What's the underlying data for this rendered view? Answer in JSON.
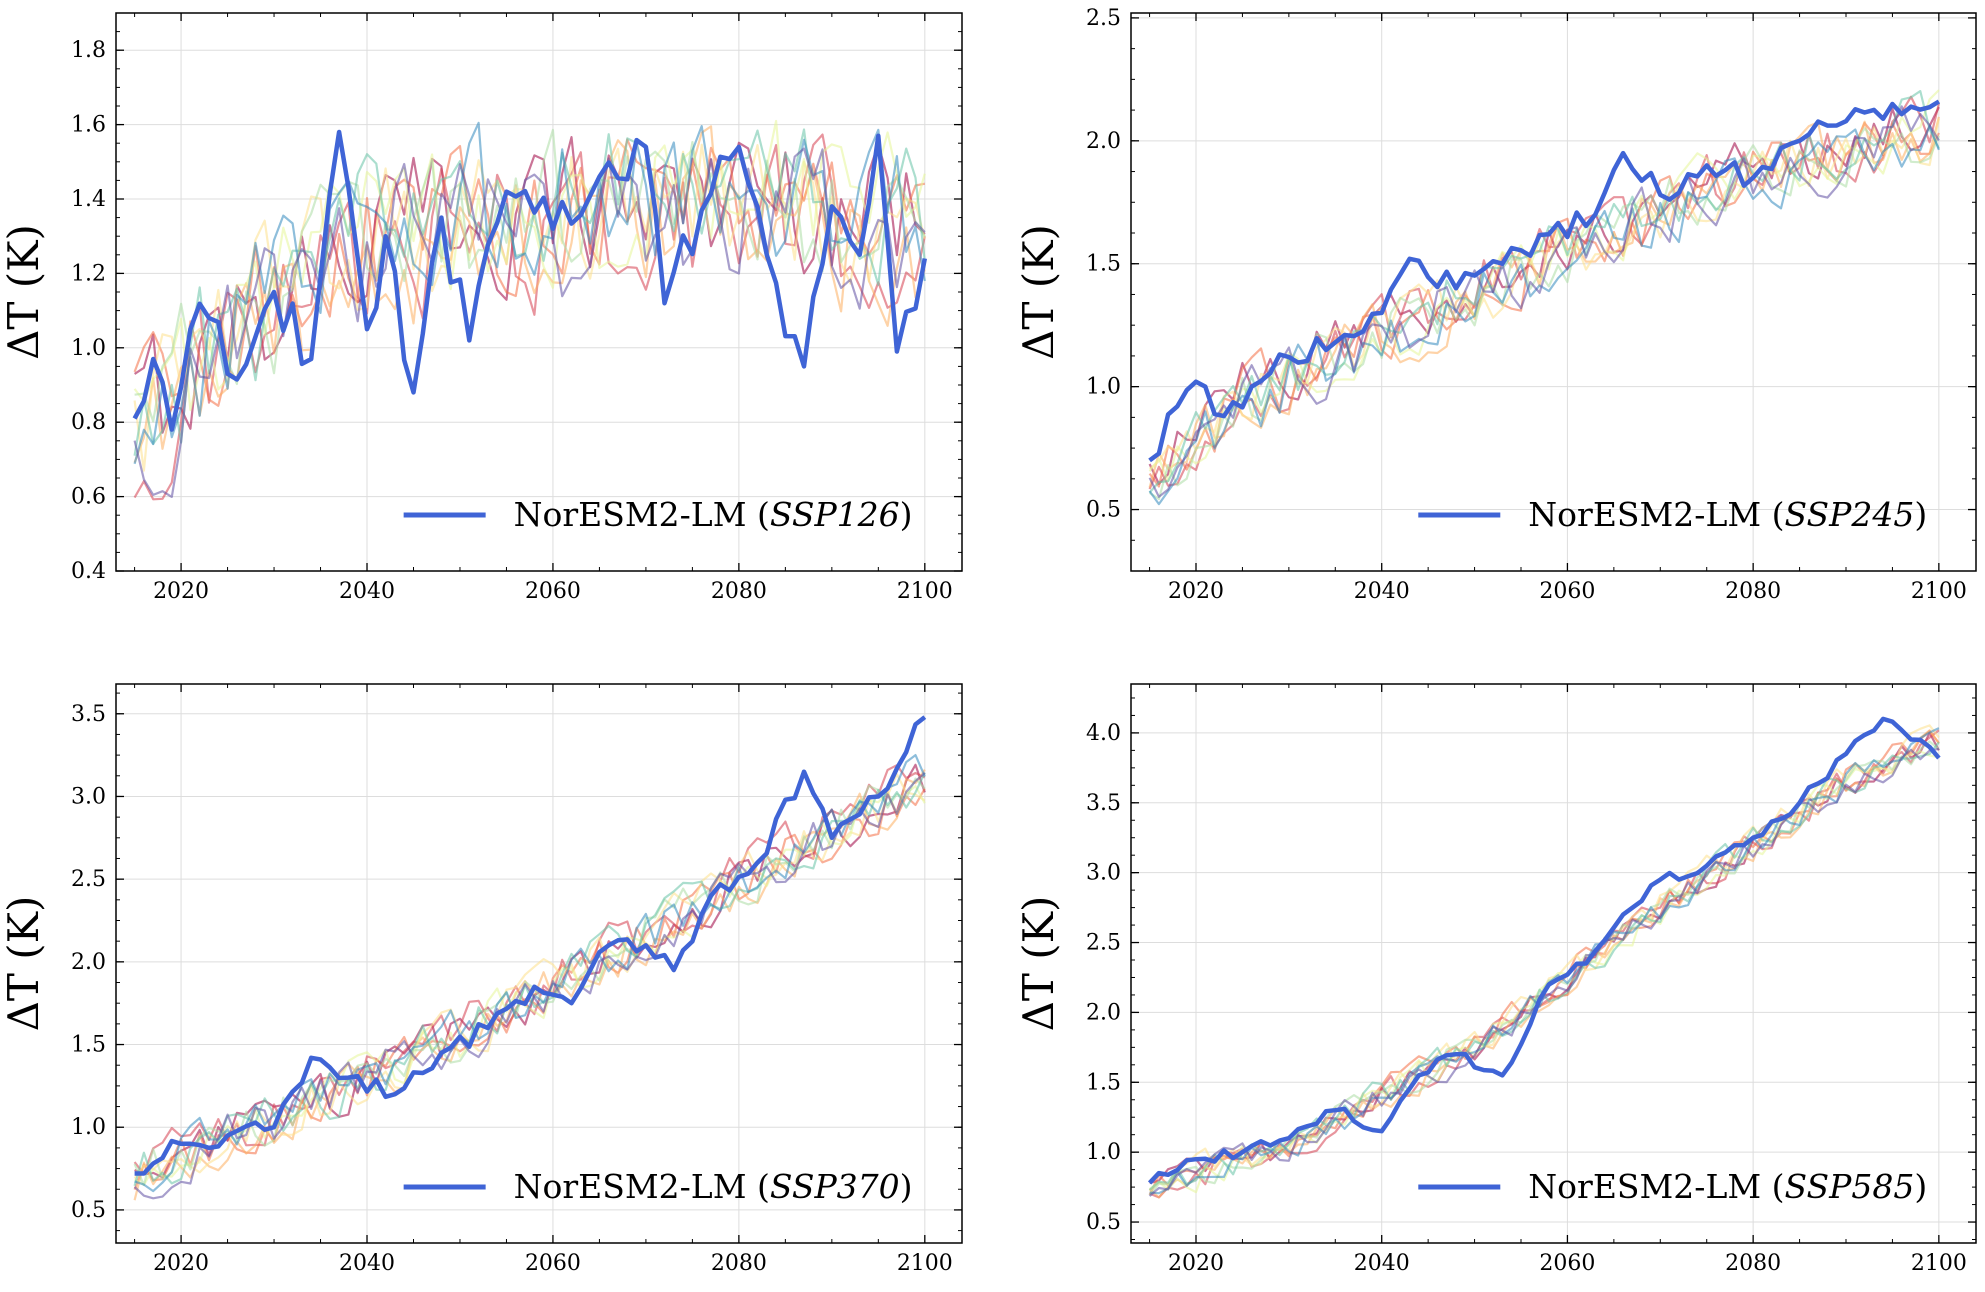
{
  "figure": {
    "style": {
      "highlight_color": "#3f64d6",
      "ensemble_colors": [
        "#9e0142",
        "#d53e4f",
        "#f46d43",
        "#fdae61",
        "#fee08b",
        "#e6f598",
        "#abdda4",
        "#66c2a5",
        "#3288bd",
        "#5e4fa2"
      ],
      "grid_color": "#dddddd",
      "axis_color": "#000000"
    }
  },
  "chart_data": [
    {
      "type": "line",
      "scenario": "SSP126",
      "ylabel": "ΔT (K)",
      "xlabel": "",
      "xlim": [
        2013,
        2104
      ],
      "ylim": [
        0.4,
        1.9
      ],
      "xticks": [
        "2020",
        "2040",
        "2060",
        "2080",
        "2100"
      ],
      "yticks": [
        "0.4",
        "0.6",
        "0.8",
        "1.0",
        "1.2",
        "1.4",
        "1.6",
        "1.8"
      ],
      "legend": {
        "position": "lower-right",
        "model": "NorESM2-LM",
        "scenario_label": "SSP126"
      },
      "grid": true,
      "x": {
        "start": 2015,
        "end": 2100
      },
      "highlight_series": {
        "name": "NorESM2-LM (SSP126)",
        "anchors": [
          [
            2015,
            0.81
          ],
          [
            2017,
            0.97
          ],
          [
            2019,
            0.78
          ],
          [
            2021,
            1.05
          ],
          [
            2023,
            1.08
          ],
          [
            2025,
            0.93
          ],
          [
            2030,
            1.15
          ],
          [
            2034,
            0.97
          ],
          [
            2037,
            1.58
          ],
          [
            2040,
            1.05
          ],
          [
            2042,
            1.3
          ],
          [
            2045,
            0.88
          ],
          [
            2048,
            1.35
          ],
          [
            2051,
            1.02
          ],
          [
            2055,
            1.42
          ],
          [
            2060,
            1.32
          ],
          [
            2065,
            1.46
          ],
          [
            2070,
            1.54
          ],
          [
            2072,
            1.12
          ],
          [
            2076,
            1.37
          ],
          [
            2080,
            1.54
          ],
          [
            2083,
            1.25
          ],
          [
            2087,
            0.95
          ],
          [
            2090,
            1.38
          ],
          [
            2093,
            1.25
          ],
          [
            2095,
            1.57
          ],
          [
            2097,
            0.99
          ],
          [
            2100,
            1.24
          ]
        ]
      },
      "ensemble": {
        "members": 10,
        "anchors": [
          [
            2015,
            0.78
          ],
          [
            2025,
            1.02
          ],
          [
            2040,
            1.28
          ],
          [
            2060,
            1.36
          ],
          [
            2080,
            1.4
          ],
          [
            2100,
            1.32
          ]
        ],
        "noise": 0.18
      }
    },
    {
      "type": "line",
      "scenario": "SSP245",
      "ylabel": "ΔT (K)",
      "xlabel": "",
      "xlim": [
        2013,
        2104
      ],
      "ylim": [
        0.25,
        2.52
      ],
      "xticks": [
        "2020",
        "2040",
        "2060",
        "2080",
        "2100"
      ],
      "yticks": [
        "0.5",
        "1.0",
        "1.5",
        "2.0",
        "2.5"
      ],
      "legend": {
        "position": "lower-right",
        "model": "NorESM2-LM",
        "scenario_label": "SSP245"
      },
      "grid": true,
      "x": {
        "start": 2015,
        "end": 2100
      },
      "highlight_series": {
        "name": "NorESM2-LM (SSP245)",
        "anchors": [
          [
            2015,
            0.7
          ],
          [
            2018,
            0.92
          ],
          [
            2020,
            1.02
          ],
          [
            2023,
            0.88
          ],
          [
            2026,
            1.0
          ],
          [
            2030,
            1.12
          ],
          [
            2035,
            1.18
          ],
          [
            2040,
            1.3
          ],
          [
            2043,
            1.52
          ],
          [
            2048,
            1.4
          ],
          [
            2053,
            1.5
          ],
          [
            2058,
            1.62
          ],
          [
            2063,
            1.7
          ],
          [
            2066,
            1.95
          ],
          [
            2070,
            1.78
          ],
          [
            2075,
            1.9
          ],
          [
            2080,
            1.85
          ],
          [
            2085,
            2.0
          ],
          [
            2090,
            2.08
          ],
          [
            2095,
            2.15
          ],
          [
            2100,
            2.16
          ]
        ]
      },
      "ensemble": {
        "members": 10,
        "anchors": [
          [
            2015,
            0.62
          ],
          [
            2025,
            0.95
          ],
          [
            2040,
            1.22
          ],
          [
            2060,
            1.56
          ],
          [
            2080,
            1.88
          ],
          [
            2100,
            2.05
          ]
        ],
        "noise": 0.12
      }
    },
    {
      "type": "line",
      "scenario": "SSP370",
      "ylabel": "ΔT (K)",
      "xlabel": "",
      "xlim": [
        2013,
        2104
      ],
      "ylim": [
        0.3,
        3.68
      ],
      "xticks": [
        "2020",
        "2040",
        "2060",
        "2080",
        "2100"
      ],
      "yticks": [
        "0.5",
        "1.0",
        "1.5",
        "2.0",
        "2.5",
        "3.0",
        "3.5"
      ],
      "legend": {
        "position": "lower-right",
        "model": "NorESM2-LM",
        "scenario_label": "SSP370"
      },
      "grid": true,
      "x": {
        "start": 2015,
        "end": 2100
      },
      "highlight_series": {
        "name": "NorESM2-LM (SSP370)",
        "anchors": [
          [
            2015,
            0.72
          ],
          [
            2020,
            0.9
          ],
          [
            2025,
            0.95
          ],
          [
            2030,
            1.0
          ],
          [
            2034,
            1.42
          ],
          [
            2038,
            1.3
          ],
          [
            2043,
            1.2
          ],
          [
            2048,
            1.45
          ],
          [
            2053,
            1.6
          ],
          [
            2058,
            1.85
          ],
          [
            2062,
            1.75
          ],
          [
            2066,
            2.1
          ],
          [
            2070,
            2.1
          ],
          [
            2073,
            1.95
          ],
          [
            2077,
            2.4
          ],
          [
            2082,
            2.6
          ],
          [
            2087,
            3.15
          ],
          [
            2090,
            2.75
          ],
          [
            2095,
            3.0
          ],
          [
            2100,
            3.48
          ]
        ]
      },
      "ensemble": {
        "members": 10,
        "anchors": [
          [
            2015,
            0.7
          ],
          [
            2030,
            1.05
          ],
          [
            2050,
            1.55
          ],
          [
            2070,
            2.15
          ],
          [
            2090,
            2.8
          ],
          [
            2100,
            3.1
          ]
        ],
        "noise": 0.14
      }
    },
    {
      "type": "line",
      "scenario": "SSP585",
      "ylabel": "ΔT (K)",
      "xlabel": "",
      "xlim": [
        2013,
        2104
      ],
      "ylim": [
        0.35,
        4.35
      ],
      "xticks": [
        "2020",
        "2040",
        "2060",
        "2080",
        "2100"
      ],
      "yticks": [
        "0.5",
        "1.0",
        "1.5",
        "2.0",
        "2.5",
        "3.0",
        "3.5",
        "4.0"
      ],
      "legend": {
        "position": "lower-right",
        "model": "NorESM2-LM",
        "scenario_label": "SSP585"
      },
      "grid": true,
      "x": {
        "start": 2015,
        "end": 2100
      },
      "highlight_series": {
        "name": "NorESM2-LM (SSP585)",
        "anchors": [
          [
            2015,
            0.78
          ],
          [
            2020,
            0.95
          ],
          [
            2025,
            1.0
          ],
          [
            2030,
            1.1
          ],
          [
            2035,
            1.3
          ],
          [
            2040,
            1.15
          ],
          [
            2044,
            1.55
          ],
          [
            2048,
            1.7
          ],
          [
            2053,
            1.55
          ],
          [
            2058,
            2.2
          ],
          [
            2062,
            2.35
          ],
          [
            2066,
            2.7
          ],
          [
            2070,
            2.95
          ],
          [
            2075,
            3.05
          ],
          [
            2080,
            3.25
          ],
          [
            2085,
            3.5
          ],
          [
            2090,
            3.85
          ],
          [
            2094,
            4.1
          ],
          [
            2098,
            3.95
          ],
          [
            2100,
            3.82
          ]
        ]
      },
      "ensemble": {
        "members": 10,
        "anchors": [
          [
            2015,
            0.75
          ],
          [
            2030,
            1.05
          ],
          [
            2050,
            1.75
          ],
          [
            2070,
            2.75
          ],
          [
            2090,
            3.65
          ],
          [
            2100,
            3.95
          ]
        ],
        "noise": 0.1
      }
    }
  ]
}
